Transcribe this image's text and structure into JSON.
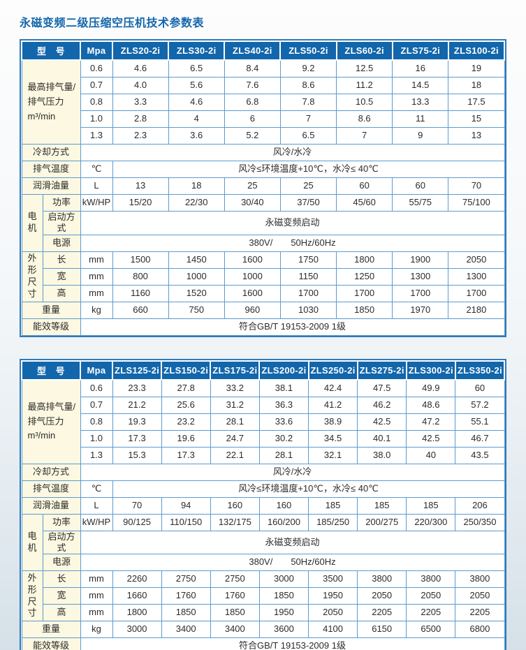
{
  "title": "永磁变频二级压缩空压机技术参数表",
  "labels": {
    "model_header": "型　号",
    "pressure_unit": "Mpa",
    "flow_label": "最高排气量/\n排气压力\nm³/min",
    "pressures": [
      "0.6",
      "0.7",
      "0.8",
      "1.0",
      "1.3"
    ],
    "cooling_label": "冷却方式",
    "exhaust_label": "排气温度",
    "exhaust_unit": "℃",
    "lubricant_label": "润滑油量",
    "lubricant_unit": "L",
    "motor_label": "电机",
    "power_label": "功率",
    "power_unit": "kW/HP",
    "start_label": "启动方式",
    "supply_label": "电源",
    "dims_label": "外形尺寸",
    "length_label": "长",
    "width_label": "宽",
    "height_label": "高",
    "dim_unit": "mm",
    "weight_label": "重量",
    "weight_unit": "kg",
    "energy_label": "能效等级"
  },
  "colors": {
    "header_blue": "#1266ab",
    "grid_blue": "#5b9bd0",
    "label_cream": "#fcf8e1",
    "title_blue": "#1467ad"
  },
  "tables": [
    {
      "models": [
        "ZLS20-2i",
        "ZLS30-2i",
        "ZLS40-2i",
        "ZLS50-2i",
        "ZLS60-2i",
        "ZLS75-2i",
        "ZLS100-2i"
      ],
      "flow": [
        [
          "4.6",
          "6.5",
          "8.4",
          "9.2",
          "12.5",
          "16",
          "19"
        ],
        [
          "4.0",
          "5.6",
          "7.6",
          "8.6",
          "11.2",
          "14.5",
          "18"
        ],
        [
          "3.3",
          "4.6",
          "6.8",
          "7.8",
          "10.5",
          "13.3",
          "17.5"
        ],
        [
          "2.8",
          "4",
          "6",
          "7",
          "8.6",
          "11",
          "15"
        ],
        [
          "2.3",
          "3.6",
          "5.2",
          "6.5",
          "7",
          "9",
          "13"
        ]
      ],
      "cooling": "风冷/水冷",
      "exhaust_temp": "风冷≤环境温度+10℃，水冷≤ 40℃",
      "lubricant": [
        "13",
        "18",
        "25",
        "25",
        "60",
        "60",
        "70"
      ],
      "power": [
        "15/20",
        "22/30",
        "30/40",
        "37/50",
        "45/60",
        "55/75",
        "75/100"
      ],
      "start_mode": "永磁变频启动",
      "power_supply": "380V/　　50Hz/60Hz",
      "length": [
        "1500",
        "1450",
        "1600",
        "1750",
        "1800",
        "1900",
        "2050"
      ],
      "width": [
        "800",
        "1000",
        "1000",
        "1150",
        "1250",
        "1300",
        "1300"
      ],
      "height": [
        "1160",
        "1520",
        "1600",
        "1700",
        "1700",
        "1700",
        "1700"
      ],
      "weight": [
        "660",
        "750",
        "960",
        "1030",
        "1850",
        "1970",
        "2180"
      ],
      "energy_rating": "符合GB/T 19153-2009 1级"
    },
    {
      "models": [
        "ZLS125-2i",
        "ZLS150-2i",
        "ZLS175-2i",
        "ZLS200-2i",
        "ZLS250-2i",
        "ZLS275-2i",
        "ZLS300-2i",
        "ZLS350-2i"
      ],
      "flow": [
        [
          "23.3",
          "27.8",
          "33.2",
          "38.1",
          "42.4",
          "47.5",
          "49.9",
          "60"
        ],
        [
          "21.2",
          "25.6",
          "31.2",
          "36.3",
          "41.2",
          "46.2",
          "48.6",
          "57.2"
        ],
        [
          "19.3",
          "23.2",
          "28.1",
          "33.6",
          "38.9",
          "42.5",
          "47.2",
          "55.1"
        ],
        [
          "17.3",
          "19.6",
          "24.7",
          "30.2",
          "34.5",
          "40.1",
          "42.5",
          "46.7"
        ],
        [
          "15.3",
          "17.3",
          "22.1",
          "28.1",
          "32.1",
          "38.0",
          "40",
          "43.5"
        ]
      ],
      "cooling": "风冷/水冷",
      "exhaust_temp": "风冷≤环境温度+10℃，水冷≤ 40℃",
      "lubricant": [
        "70",
        "94",
        "160",
        "160",
        "185",
        "185",
        "185",
        "206"
      ],
      "power": [
        "90/125",
        "110/150",
        "132/175",
        "160/200",
        "185/250",
        "200/275",
        "220/300",
        "250/350"
      ],
      "start_mode": "永磁变频启动",
      "power_supply": "380V/　　50Hz/60Hz",
      "length": [
        "2260",
        "2750",
        "2750",
        "3000",
        "3500",
        "3800",
        "3800",
        "3800"
      ],
      "width": [
        "1660",
        "1760",
        "1760",
        "1850",
        "1950",
        "2050",
        "2050",
        "2050"
      ],
      "height": [
        "1800",
        "1850",
        "1850",
        "1950",
        "2050",
        "2205",
        "2205",
        "2205"
      ],
      "weight": [
        "3000",
        "3400",
        "3400",
        "3600",
        "4100",
        "6150",
        "6500",
        "6800"
      ],
      "energy_rating": "符合GB/T 19153-2009 1级"
    }
  ]
}
